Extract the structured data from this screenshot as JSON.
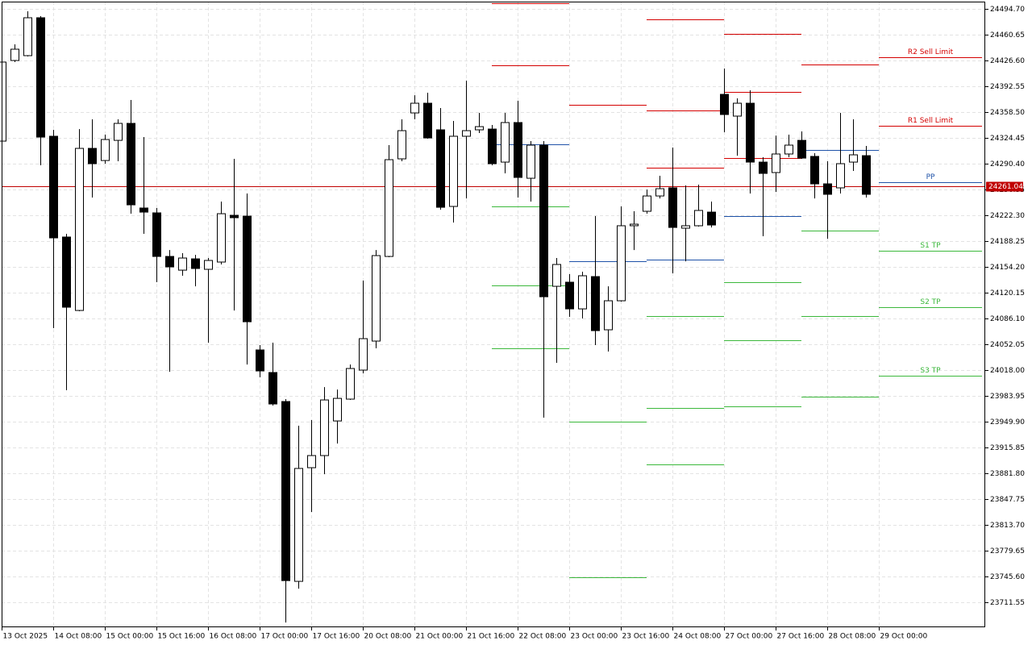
{
  "chart_data": {
    "type": "candlestick",
    "xticks": [
      {
        "value": 0,
        "label": "13 Oct 2025"
      },
      {
        "value": 4,
        "label": "14 Oct 08:00"
      },
      {
        "value": 8,
        "label": "15 Oct 00:00"
      },
      {
        "value": 12,
        "label": "15 Oct 16:00"
      },
      {
        "value": 16,
        "label": "16 Oct 08:00"
      },
      {
        "value": 20,
        "label": "17 Oct 00:00"
      },
      {
        "value": 24,
        "label": "17 Oct 16:00"
      },
      {
        "value": 28,
        "label": "20 Oct 08:00"
      },
      {
        "value": 32,
        "label": "21 Oct 00:00"
      },
      {
        "value": 36,
        "label": "21 Oct 16:00"
      },
      {
        "value": 40,
        "label": "22 Oct 08:00"
      },
      {
        "value": 44,
        "label": "23 Oct 00:00"
      },
      {
        "value": 48,
        "label": "23 Oct 16:00"
      },
      {
        "value": 52,
        "label": "24 Oct 08:00"
      },
      {
        "value": 56,
        "label": "27 Oct 00:00"
      },
      {
        "value": 60,
        "label": "27 Oct 16:00"
      },
      {
        "value": 64,
        "label": "28 Oct 08:00"
      },
      {
        "value": 68,
        "label": "29 Oct 00:00"
      }
    ],
    "xlim": [
      0,
      76.25
    ],
    "ylim": [
      23678.6,
      24504.3
    ],
    "yticks": [
      {
        "value": 24494.7,
        "label": "24494.70"
      },
      24460.65,
      {
        "value": 24426.6,
        "label": "24426.60"
      },
      24392.55,
      {
        "value": 24358.5,
        "label": "24358.50"
      },
      24324.45,
      {
        "value": 24290.4,
        "label": "24290.40"
      },
      24256.35,
      {
        "value": 24222.3,
        "label": "24222.30"
      },
      24188.25,
      {
        "value": 24154.2,
        "label": "24154.20"
      },
      24120.15,
      {
        "value": 24086.1,
        "label": "24086.10"
      },
      24052.05,
      {
        "value": 24018,
        "label": "24018.00"
      },
      23983.95,
      {
        "value": 23949.9,
        "label": "23949.90"
      },
      23915.85,
      {
        "value": 23881.8,
        "label": "23881.80"
      },
      23847.75,
      {
        "value": 23813.7,
        "label": "23813.70"
      },
      23779.65,
      {
        "value": 23745.6,
        "label": "23745.60"
      },
      23711.55
    ],
    "grid": true,
    "up_color": "#ffffff",
    "down_color": "#000000",
    "open": [
      24320.2,
      24426.6,
      24433.0,
      24483.0,
      24326.6,
      24193.6,
      24096.7,
      24310.6,
      24294.6,
      24321.2,
      24343.6,
      24231.9,
      24225.5,
      24168.0,
      24149.9,
      24164.8,
      24151.0,
      24160.6,
      24222.3,
      24221.2,
      24044.6,
      24014.8,
      23976.5,
      23739.2,
      23889.2,
      23905.2,
      23950.9,
      23979.7,
      24018.0,
      24056.3,
      24168.0,
      24296.8,
      24357.4,
      24370.2,
      24335.1,
      24234.0,
      24326.6,
      24335.1,
      24336.1,
      24292.5,
      24344.7,
      24271.2,
      24314.9,
      24128.6,
      24134.0,
      24098.8,
      24141.4,
      24071.2,
      24109.5,
      24208.5,
      24227.6,
      24247.8,
      24258.5,
      24205.3,
      24208.5,
      24226.5,
      24381.9,
      24353.2,
      24370.2,
      24292.5,
      24278.7,
      24303.2,
      24321.2,
      24300.0,
      24263.8,
      24258.5,
      24292.5,
      24301.0
    ],
    "high": [
      24431.9,
      24447.9,
      24491.5,
      24485.1,
      24335.1,
      24197.8,
      24336.1,
      24348.9,
      24328.7,
      24348.9,
      24374.5,
      24325.5,
      24231.9,
      24176.5,
      24172.3,
      24170.1,
      24165.9,
      24240.4,
      24296.8,
      24251.0,
      24051.0,
      24054.2,
      23979.7,
      23944.6,
      23952.0,
      23995.6,
      23992.4,
      24025.4,
      24136.1,
      24176.5,
      24314.9,
      24348.9,
      24380.8,
      24384.0,
      24363.8,
      24346.8,
      24400.0,
      24357.4,
      24341.5,
      24357.4,
      24373.4,
      24320.2,
      24320.2,
      24165.9,
      24144.6,
      24147.8,
      24221.2,
      24128.6,
      24234.0,
      24227.6,
      24256.3,
      24274.4,
      24311.7,
      24261.7,
      24262.7,
      24240.4,
      24416.0,
      24376.6,
      24387.2,
      24298.9,
      24327.6,
      24328.7,
      24333.0,
      24304.2,
      24293.6,
      24357.4,
      24348.9,
      24313.8
    ],
    "low": [
      24320.2,
      24424.5,
      24431.9,
      24288.3,
      24073.3,
      23991.4,
      24095.7,
      24245.7,
      24290.4,
      24293.6,
      24224.4,
      24197.8,
      24134.0,
      24015.8,
      24142.5,
      24128.6,
      24054.2,
      24157.4,
      24096.7,
      24025.4,
      24008.4,
      23971.2,
      23684.9,
      23729.6,
      23830.7,
      23880.7,
      23921.1,
      23978.6,
      24013.7,
      24046.7,
      24167.0,
      24293.6,
      24348.9,
      24323.4,
      24229.7,
      24212.7,
      24244.6,
      24330.8,
      24288.3,
      24277.6,
      24245.7,
      24240.4,
      23955.2,
      24027.6,
      24088.2,
      24086.1,
      24051.0,
      24042.5,
      24108.4,
      24176.5,
      24224.4,
      24244.6,
      24145.7,
      24161.6,
      24207.4,
      24206.3,
      24331.9,
      24301.0,
      24251.0,
      24194.6,
      24253.1,
      24298.9,
      24296.8,
      24244.6,
      24191.4,
      24251.0,
      24280.8,
      24245.7
    ],
    "close": [
      24424.5,
      24441.5,
      24483.0,
      24325.5,
      24192.5,
      24101.0,
      24310.6,
      24290.4,
      24322.3,
      24343.6,
      24236.1,
      24226.5,
      24168.0,
      24154.2,
      24165.9,
      24152.1,
      24162.7,
      24224.4,
      24219.1,
      24081.8,
      24016.9,
      23973.3,
      23740.2,
      23888.2,
      23905.2,
      23978.6,
      23980.7,
      24020.1,
      24059.5,
      24169.1,
      24295.7,
      24334.0,
      24370.2,
      24324.4,
      24232.9,
      24326.6,
      24334.0,
      24339.3,
      24290.4,
      24344.7,
      24272.3,
      24314.9,
      24114.8,
      24157.4,
      24098.8,
      24142.5,
      24070.1,
      24109.5,
      24208.5,
      24210.6,
      24247.8,
      24257.4,
      24206.3,
      24208.5,
      24228.7,
      24209.5,
      24355.3,
      24370.2,
      24292.5,
      24277.6,
      24303.2,
      24314.9,
      24297.8,
      24263.8,
      24250.0,
      24290.4,
      24302.1,
      24250.0
    ],
    "current_price": {
      "value": 24261.04,
      "label": "24261.04",
      "color": "#c00000"
    },
    "level_colors": {
      "resistance": "#d40000",
      "pivot": "#1f52a8",
      "support": "#3cb83c"
    },
    "pivot_periods": [
      {
        "levels": [
          {
            "kind": "resistance",
            "value": 24502.1
          },
          {
            "kind": "resistance",
            "value": 24420.2
          },
          {
            "kind": "pivot",
            "value": 24315.9
          },
          {
            "kind": "support",
            "value": 24234.0
          },
          {
            "kind": "support",
            "value": 24129.7
          },
          {
            "kind": "support",
            "value": 24046.7
          }
        ]
      },
      {
        "levels": [
          {
            "kind": "resistance",
            "value": 24368.1
          },
          {
            "kind": "pivot",
            "value": 24161.6
          },
          {
            "kind": "support",
            "value": 23949.9
          },
          {
            "kind": "support",
            "value": 23744.5
          }
        ]
      },
      {
        "levels": [
          {
            "kind": "resistance",
            "value": 24480.9
          },
          {
            "kind": "resistance",
            "value": 24360.6
          },
          {
            "kind": "resistance",
            "value": 24285.1
          },
          {
            "kind": "pivot",
            "value": 24163.8
          },
          {
            "kind": "support",
            "value": 24089.3
          },
          {
            "kind": "support",
            "value": 23968.0
          },
          {
            "kind": "support",
            "value": 23893.5
          }
        ]
      },
      {
        "levels": [
          {
            "kind": "resistance",
            "value": 24461.7
          },
          {
            "kind": "resistance",
            "value": 24385.1
          },
          {
            "kind": "resistance",
            "value": 24297.8
          },
          {
            "kind": "pivot",
            "value": 24221.2
          },
          {
            "kind": "support",
            "value": 24133.9
          },
          {
            "kind": "support",
            "value": 24057.4
          },
          {
            "kind": "support",
            "value": 23970.1
          }
        ]
      },
      {
        "levels": [
          {
            "kind": "resistance",
            "value": 24421.3
          },
          {
            "kind": "pivot",
            "value": 24308.5
          },
          {
            "kind": "support",
            "value": 24202.1
          },
          {
            "kind": "support",
            "value": 24089.3
          },
          {
            "kind": "support",
            "value": 23982.9
          }
        ]
      },
      {
        "levels": [
          {
            "kind": "resistance",
            "value": 24430.8,
            "label": "R2 Sell Limit"
          },
          {
            "kind": "resistance",
            "value": 24340.4,
            "label": "R1 Sell Limit"
          },
          {
            "kind": "pivot",
            "value": 24265.9,
            "label": "PP"
          },
          {
            "kind": "support",
            "value": 24175.5,
            "label": "S1 TP"
          },
          {
            "kind": "support",
            "value": 24101.0,
            "label": "S2 TP"
          },
          {
            "kind": "support",
            "value": 24010.5,
            "label": "S3 TP"
          }
        ]
      }
    ]
  }
}
